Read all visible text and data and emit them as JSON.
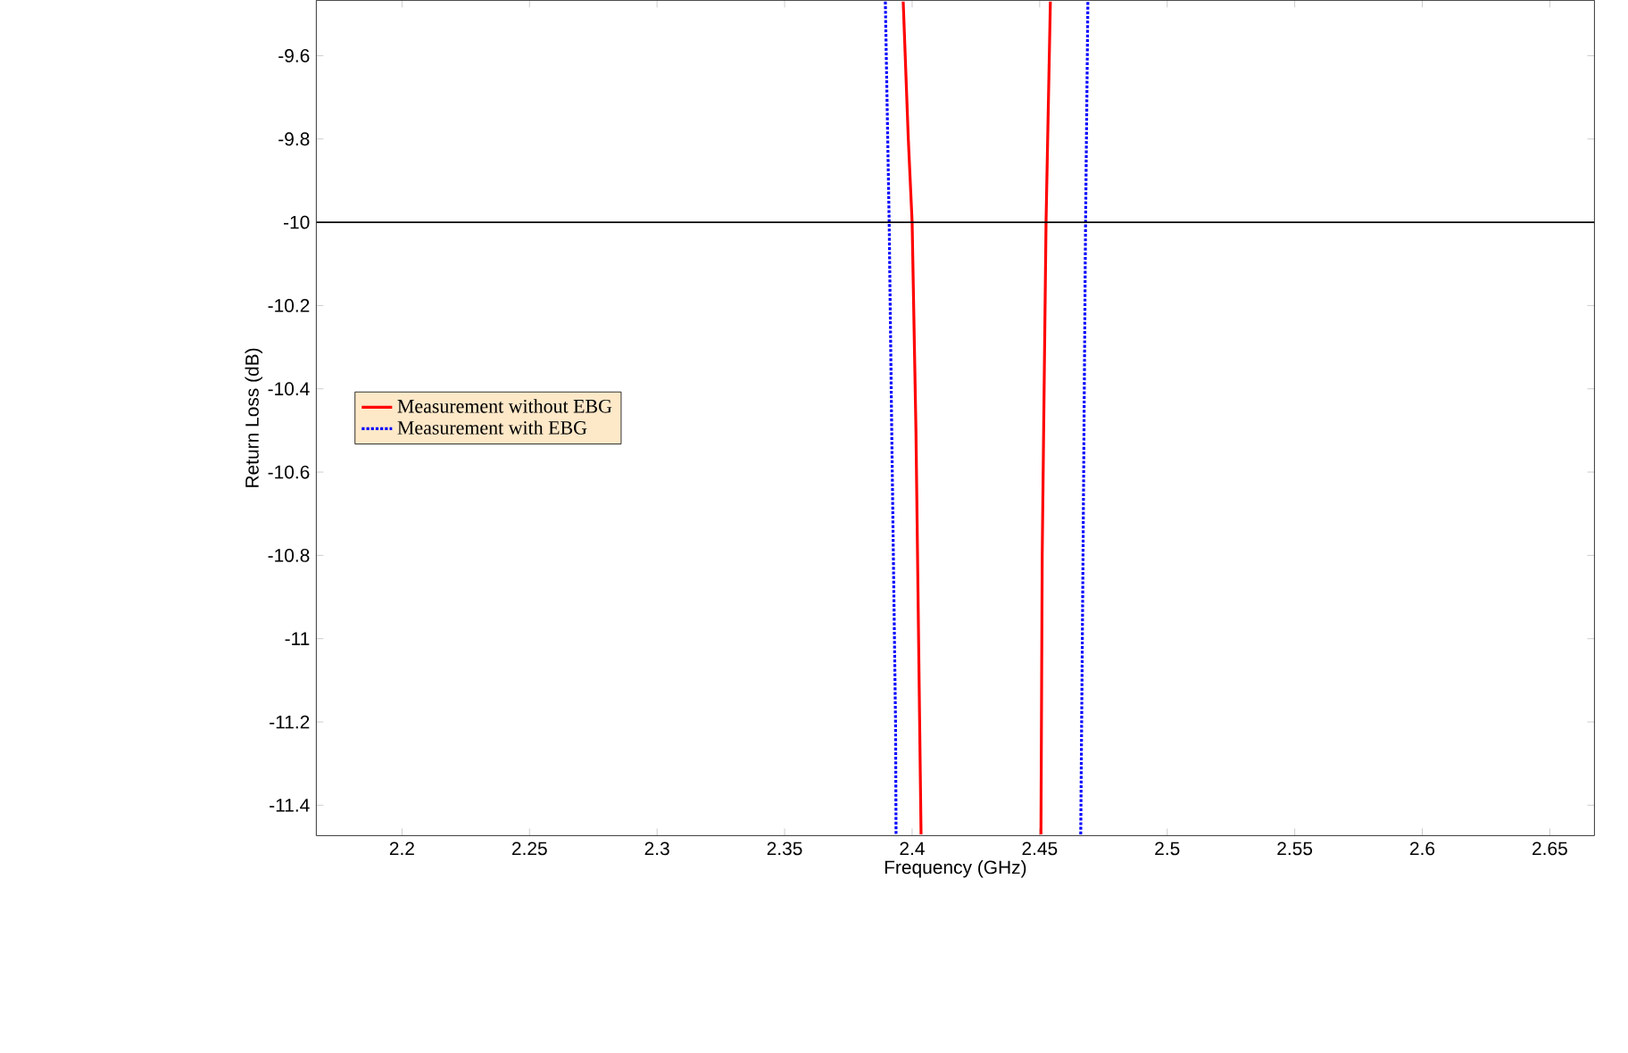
{
  "chart_data": {
    "type": "line",
    "xlabel": "Frequency (GHz)",
    "ylabel": "Return Loss (dB)",
    "series": [
      {
        "name": "Measurement without EBG",
        "color": "#ff0000",
        "line_style": "solid",
        "x": [
          2.3965,
          2.3985,
          2.4,
          2.4015,
          2.4035,
          2.427,
          2.4505,
          2.451,
          2.4525,
          2.4542
        ],
        "values": [
          -9.47,
          -9.8,
          -10,
          -10.5,
          -11.47,
          null,
          -11.47,
          -10.8,
          -10,
          -9.47
        ]
      },
      {
        "name": "Measurement with EBG",
        "color": "#0000ff",
        "line_style": "dotted",
        "x": [
          2.3895,
          2.391,
          2.392,
          2.3935,
          2.3937,
          2.43,
          2.4661,
          2.467,
          2.468,
          2.4689
        ],
        "values": [
          -9.47,
          -10,
          -10.5,
          -11.2,
          -11.47,
          null,
          -11.47,
          -10.8,
          -10,
          -9.47
        ]
      }
    ],
    "xlim": [
      2.1664,
      2.6675
    ],
    "ylim": [
      -11.473,
      -9.467
    ],
    "xticks": [
      2.2,
      2.25,
      2.3,
      2.35,
      2.4,
      2.45,
      2.5,
      2.55,
      2.6,
      2.65
    ],
    "yticks": [
      -11.4,
      -11.2,
      -11,
      -10.8,
      -10.6,
      -10.4,
      -10.2,
      -10,
      -9.8,
      -9.6
    ],
    "ref_lines": [
      {
        "axis": "y",
        "value": -10,
        "color": "#000000"
      }
    ],
    "legend": "left"
  }
}
